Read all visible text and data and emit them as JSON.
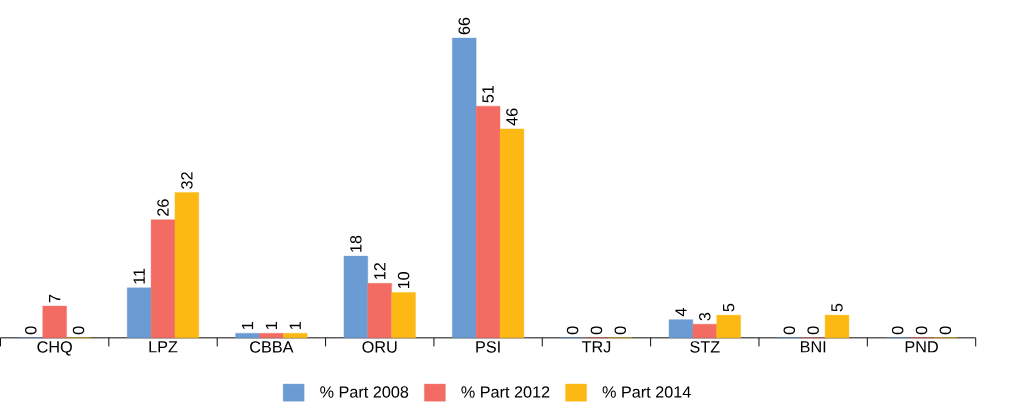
{
  "chart_data": {
    "type": "bar",
    "categories": [
      "CHQ",
      "LPZ",
      "CBBA",
      "ORU",
      "PSI",
      "TRJ",
      "STZ",
      "BNI",
      "PND"
    ],
    "series": [
      {
        "name": "% Part 2008",
        "color": "#6a9bd3",
        "values": [
          0,
          11,
          1,
          18,
          66,
          0,
          4,
          0,
          0
        ]
      },
      {
        "name": "% Part 2012",
        "color": "#f26c63",
        "values": [
          7,
          26,
          1,
          12,
          51,
          0,
          3,
          0,
          0
        ]
      },
      {
        "name": "% Part 2014",
        "color": "#fdb913",
        "values": [
          0,
          32,
          1,
          10,
          46,
          0,
          5,
          5,
          0
        ]
      }
    ],
    "data_labels": true,
    "legend": "bottom",
    "tick_labels": "x"
  }
}
